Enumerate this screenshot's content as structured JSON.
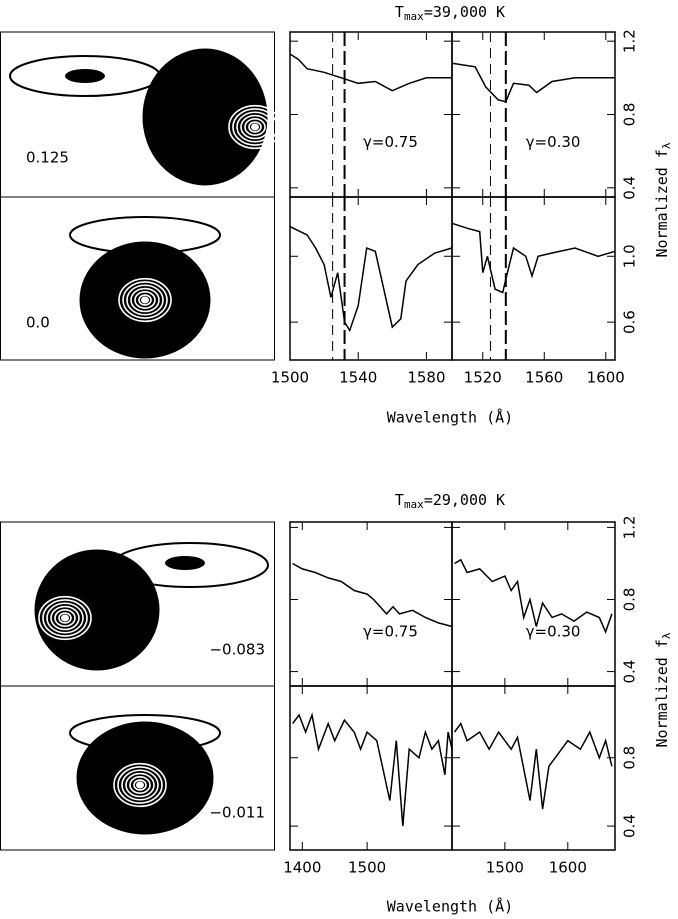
{
  "groups": [
    {
      "title": {
        "main": "T",
        "sub": "max",
        "rest": "=39,000 K"
      },
      "xlabel": "Wavelength (Å)",
      "ylabel": {
        "main": "Normalized f",
        "sub": "λ"
      },
      "phases": [
        "0.125",
        "0.0"
      ]
    },
    {
      "title": {
        "main": "T",
        "sub": "max",
        "rest": "=29,000 K"
      },
      "xlabel": "Wavelength (Å)",
      "ylabel": {
        "main": "Normalized f",
        "sub": "λ"
      },
      "phases": [
        "−0.083",
        "−0.011"
      ]
    }
  ],
  "chart_data": [
    {
      "type": "line",
      "annotation": "γ=0.75",
      "markers": [
        1525,
        1532
      ],
      "x": [
        1500,
        1505,
        1510,
        1520,
        1530,
        1540,
        1550,
        1560,
        1570,
        1580,
        1595
      ],
      "values": [
        1.13,
        1.1,
        1.05,
        1.03,
        1.0,
        0.97,
        0.98,
        0.93,
        0.97,
        1.0,
        1.0
      ],
      "xlim": [
        1500,
        1595
      ],
      "ylim": [
        0.35,
        1.25
      ],
      "xticks": [
        1500,
        1540,
        1580
      ],
      "yticks": [
        0.4,
        0.8,
        1.2
      ]
    },
    {
      "type": "line",
      "annotation": "γ=0.30",
      "markers": [
        1525,
        1535
      ],
      "x": [
        1500,
        1515,
        1522,
        1530,
        1535,
        1540,
        1550,
        1555,
        1565,
        1580,
        1606
      ],
      "values": [
        1.08,
        1.06,
        0.95,
        0.88,
        0.87,
        0.97,
        0.96,
        0.92,
        0.98,
        1.0,
        1.0
      ],
      "xlim": [
        1500,
        1606
      ],
      "ylim": [
        0.35,
        1.25
      ],
      "xticks": [
        1520,
        1560,
        1600
      ],
      "yticks": [
        0.4,
        0.8,
        1.2
      ]
    },
    {
      "type": "line",
      "markers": [
        1525,
        1532
      ],
      "x": [
        1500,
        1510,
        1515,
        1520,
        1524,
        1528,
        1532,
        1535,
        1540,
        1545,
        1550,
        1555,
        1560,
        1565,
        1568,
        1575,
        1585,
        1595
      ],
      "values": [
        1.18,
        1.13,
        1.05,
        0.95,
        0.75,
        0.9,
        0.6,
        0.55,
        0.7,
        1.05,
        1.03,
        0.8,
        0.57,
        0.62,
        0.85,
        0.95,
        1.02,
        1.05
      ],
      "xlim": [
        1500,
        1595
      ],
      "ylim": [
        0.37,
        1.36
      ],
      "xticks": [
        1500,
        1540,
        1580
      ],
      "yticks": [
        0.6,
        {
          "value": 1,
          "label": "1.0"
        }
      ]
    },
    {
      "type": "line",
      "markers": [
        1525,
        1535
      ],
      "x": [
        1500,
        1510,
        1518,
        1520,
        1523,
        1528,
        1533,
        1536,
        1540,
        1548,
        1552,
        1556,
        1565,
        1580,
        1595,
        1606
      ],
      "values": [
        1.2,
        1.17,
        1.15,
        0.9,
        1.0,
        0.8,
        0.78,
        0.9,
        1.05,
        1.0,
        0.88,
        1.0,
        1.02,
        1.05,
        1.0,
        1.03
      ],
      "xlim": [
        1500,
        1606
      ],
      "ylim": [
        0.37,
        1.36
      ],
      "xticks": [
        1520,
        1560,
        1600
      ],
      "yticks": [
        0.6,
        {
          "value": 1,
          "label": "1.0"
        }
      ]
    },
    {
      "type": "line",
      "annotation": "γ=0.75",
      "x": [
        1385,
        1400,
        1420,
        1440,
        1460,
        1480,
        1500,
        1510,
        1530,
        1540,
        1550,
        1570,
        1590,
        1610,
        1631
      ],
      "values": [
        1.0,
        0.97,
        0.95,
        0.92,
        0.9,
        0.85,
        0.83,
        0.8,
        0.72,
        0.76,
        0.72,
        0.74,
        0.7,
        0.67,
        0.65
      ],
      "xlim": [
        1381,
        1631
      ],
      "ylim": [
        0.32,
        1.23
      ],
      "xticks": [
        1400,
        1500
      ],
      "yticks": [
        0.4,
        0.8,
        1.2
      ]
    },
    {
      "type": "line",
      "annotation": "γ=0.30",
      "x": [
        1420,
        1430,
        1440,
        1460,
        1480,
        1500,
        1510,
        1520,
        1530,
        1540,
        1550,
        1560,
        1575,
        1590,
        1610,
        1630,
        1650,
        1660,
        1670
      ],
      "values": [
        1.0,
        1.02,
        0.95,
        0.97,
        0.9,
        0.93,
        0.85,
        0.9,
        0.7,
        0.8,
        0.65,
        0.78,
        0.7,
        0.72,
        0.68,
        0.73,
        0.7,
        0.62,
        0.72
      ],
      "xlim": [
        1416,
        1675
      ],
      "ylim": [
        0.32,
        1.23
      ],
      "xticks": [
        1500,
        1600
      ],
      "yticks": [
        0.4,
        0.8,
        1.2
      ]
    },
    {
      "type": "line",
      "x": [
        1385,
        1395,
        1405,
        1415,
        1425,
        1440,
        1450,
        1465,
        1480,
        1490,
        1500,
        1515,
        1535,
        1545,
        1555,
        1565,
        1580,
        1590,
        1600,
        1610,
        1620,
        1625,
        1631
      ],
      "values": [
        1.0,
        1.05,
        0.95,
        1.05,
        0.85,
        1.0,
        0.9,
        1.02,
        0.95,
        0.85,
        0.95,
        0.9,
        0.55,
        0.9,
        0.4,
        0.85,
        0.8,
        0.95,
        0.85,
        0.9,
        0.7,
        0.95,
        0.85
      ],
      "xlim": [
        1381,
        1631
      ],
      "ylim": [
        0.26,
        1.22
      ],
      "xticks": [
        1400,
        1500
      ],
      "yticks": [
        0.4,
        0.8
      ]
    },
    {
      "type": "line",
      "x": [
        1420,
        1430,
        1440,
        1460,
        1475,
        1490,
        1510,
        1520,
        1540,
        1550,
        1560,
        1570,
        1580,
        1600,
        1620,
        1635,
        1650,
        1660,
        1670
      ],
      "values": [
        0.95,
        1.0,
        0.9,
        0.95,
        0.85,
        0.95,
        0.85,
        0.92,
        0.55,
        0.85,
        0.5,
        0.75,
        0.8,
        0.9,
        0.85,
        0.95,
        0.8,
        0.9,
        0.75
      ],
      "xlim": [
        1416,
        1675
      ],
      "ylim": [
        0.26,
        1.22
      ],
      "xticks": [
        1500,
        1600
      ],
      "yticks": [
        0.4,
        0.8
      ]
    }
  ]
}
